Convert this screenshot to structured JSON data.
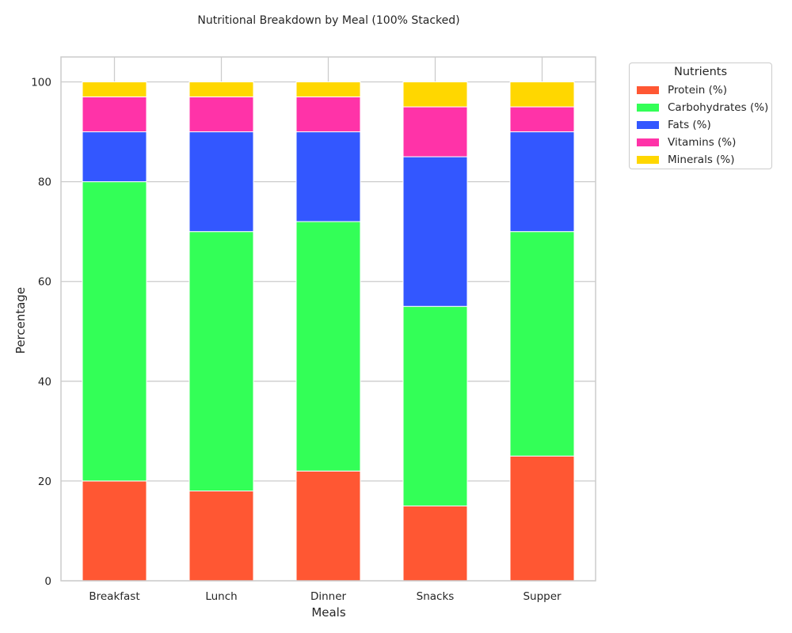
{
  "chart_data": {
    "type": "bar",
    "stacked": true,
    "title": "Nutritional Breakdown by Meal (100% Stacked)",
    "xlabel": "Meals",
    "ylabel": "Percentage",
    "categories": [
      "Breakfast",
      "Lunch",
      "Dinner",
      "Snacks",
      "Supper"
    ],
    "ylim": [
      0,
      105
    ],
    "yticks": [
      0,
      20,
      40,
      60,
      80,
      100
    ],
    "grid": true,
    "legend": {
      "title": "Nutrients",
      "placement": "outside-top-right"
    },
    "series": [
      {
        "name": "Protein (%)",
        "color": "#ff5733",
        "values": [
          20,
          18,
          22,
          15,
          25
        ]
      },
      {
        "name": "Carbohydrates (%)",
        "color": "#33ff57",
        "values": [
          60,
          52,
          50,
          40,
          45
        ]
      },
      {
        "name": "Fats (%)",
        "color": "#3357ff",
        "values": [
          10,
          20,
          18,
          30,
          20
        ]
      },
      {
        "name": "Vitamins (%)",
        "color": "#ff33a8",
        "values": [
          7,
          7,
          7,
          10,
          5
        ]
      },
      {
        "name": "Minerals (%)",
        "color": "#ffd700",
        "values": [
          3,
          3,
          3,
          5,
          5
        ]
      }
    ]
  }
}
